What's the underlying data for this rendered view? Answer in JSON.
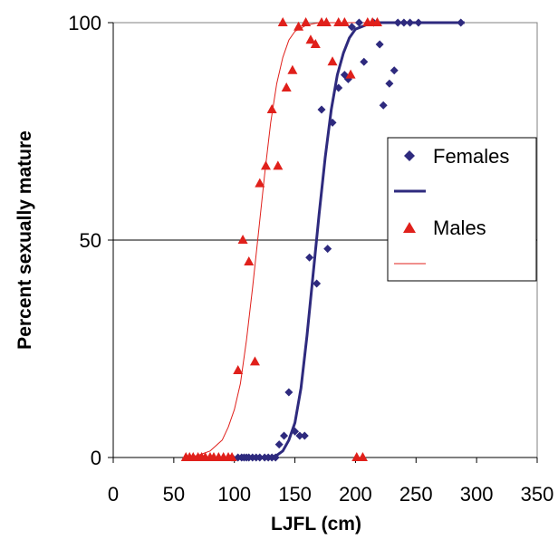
{
  "chart_data": {
    "type": "scatter",
    "xlabel": "LJFL (cm)",
    "ylabel": "Percent sexually  mature",
    "xlim": [
      0,
      350
    ],
    "ylim": [
      0,
      100
    ],
    "xticks": [
      "0",
      "50",
      "100",
      "150",
      "200",
      "250",
      "300",
      "350"
    ],
    "yticks": [
      "0",
      "50",
      "100"
    ],
    "grid": "horizontal at 50",
    "legend_position": "right",
    "series": [
      {
        "name": "Females",
        "kind": "points",
        "marker": "diamond",
        "color": "#2e2a7e",
        "points": [
          [
            98,
            0
          ],
          [
            103,
            0
          ],
          [
            106,
            0
          ],
          [
            108,
            0
          ],
          [
            110,
            0
          ],
          [
            112,
            0
          ],
          [
            115,
            0
          ],
          [
            118,
            0
          ],
          [
            121,
            0
          ],
          [
            125,
            0
          ],
          [
            128,
            0
          ],
          [
            131,
            0
          ],
          [
            134,
            0
          ],
          [
            137,
            3
          ],
          [
            141,
            5
          ],
          [
            145,
            15
          ],
          [
            150,
            6
          ],
          [
            154,
            5
          ],
          [
            158,
            5
          ],
          [
            162,
            46
          ],
          [
            168,
            40
          ],
          [
            172,
            80
          ],
          [
            177,
            48
          ],
          [
            181,
            77
          ],
          [
            186,
            85
          ],
          [
            191,
            88
          ],
          [
            194,
            87
          ],
          [
            197,
            99
          ],
          [
            203,
            100
          ],
          [
            207,
            91
          ],
          [
            215,
            100
          ],
          [
            220,
            95
          ],
          [
            223,
            81
          ],
          [
            228,
            86
          ],
          [
            232,
            89
          ],
          [
            235,
            100
          ],
          [
            240,
            100
          ],
          [
            245,
            100
          ],
          [
            252,
            100
          ],
          [
            287,
            100
          ]
        ]
      },
      {
        "name": "",
        "kind": "line",
        "color": "#2e2a7e",
        "points": [
          [
            130,
            0
          ],
          [
            135,
            0.5
          ],
          [
            140,
            1.5
          ],
          [
            145,
            4
          ],
          [
            150,
            8
          ],
          [
            155,
            16
          ],
          [
            160,
            28
          ],
          [
            165,
            42
          ],
          [
            170,
            56
          ],
          [
            175,
            69
          ],
          [
            180,
            80
          ],
          [
            185,
            88
          ],
          [
            190,
            93
          ],
          [
            195,
            96.5
          ],
          [
            200,
            98.5
          ],
          [
            210,
            99.6
          ],
          [
            220,
            100
          ],
          [
            240,
            100
          ],
          [
            260,
            100
          ],
          [
            290,
            100
          ]
        ]
      },
      {
        "name": "Males",
        "kind": "points",
        "marker": "triangle",
        "color": "#e0201b",
        "points": [
          [
            60,
            0
          ],
          [
            63,
            0
          ],
          [
            66,
            0
          ],
          [
            70,
            0
          ],
          [
            73,
            0
          ],
          [
            76,
            0
          ],
          [
            80,
            0
          ],
          [
            83,
            0
          ],
          [
            87,
            0
          ],
          [
            91,
            0
          ],
          [
            95,
            0
          ],
          [
            98,
            0
          ],
          [
            103,
            20
          ],
          [
            107,
            50
          ],
          [
            112,
            45
          ],
          [
            117,
            22
          ],
          [
            121,
            63
          ],
          [
            126,
            67
          ],
          [
            131,
            80
          ],
          [
            136,
            67
          ],
          [
            140,
            100
          ],
          [
            143,
            85
          ],
          [
            148,
            89
          ],
          [
            153,
            99
          ],
          [
            159,
            100
          ],
          [
            163,
            96
          ],
          [
            167,
            95
          ],
          [
            172,
            100
          ],
          [
            176,
            100
          ],
          [
            181,
            91
          ],
          [
            186,
            100
          ],
          [
            191,
            100
          ],
          [
            196,
            88
          ],
          [
            201,
            0
          ],
          [
            206,
            0
          ],
          [
            210,
            100
          ],
          [
            214,
            100
          ],
          [
            218,
            100
          ]
        ]
      },
      {
        "name": "",
        "kind": "line",
        "color": "#e0201b",
        "points": [
          [
            60,
            0
          ],
          [
            70,
            0.5
          ],
          [
            80,
            1.5
          ],
          [
            90,
            4
          ],
          [
            95,
            7
          ],
          [
            100,
            11
          ],
          [
            105,
            17
          ],
          [
            110,
            27
          ],
          [
            115,
            39
          ],
          [
            120,
            52
          ],
          [
            125,
            65
          ],
          [
            130,
            77
          ],
          [
            135,
            86
          ],
          [
            140,
            92
          ],
          [
            145,
            96
          ],
          [
            150,
            98
          ],
          [
            160,
            99.5
          ],
          [
            170,
            100
          ],
          [
            185,
            100
          ],
          [
            200,
            100
          ],
          [
            220,
            100
          ]
        ]
      }
    ]
  }
}
